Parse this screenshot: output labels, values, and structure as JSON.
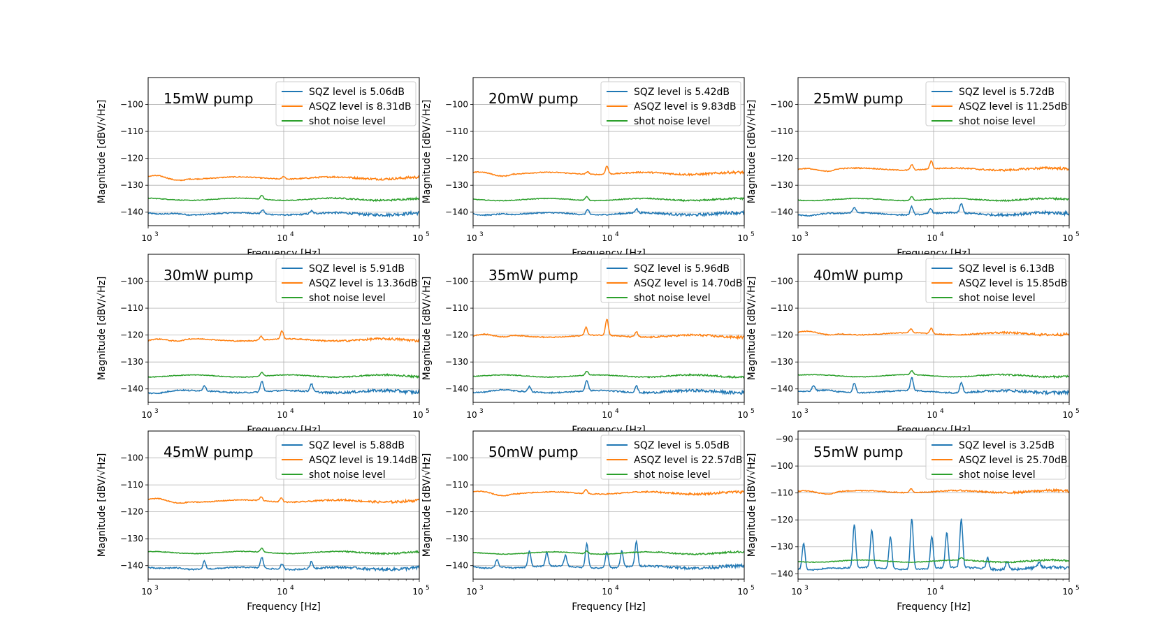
{
  "chart_data": {
    "type": "line",
    "layout": "3x3 grid",
    "x_scale": "log",
    "grid": true,
    "legend_placement": "upper right",
    "xlabel": "Frequency [Hz]",
    "ylabel": "Magnitude [dBV/√Hz]",
    "xlim": [
      1000,
      100000
    ],
    "x_ticks": [
      1000,
      10000,
      100000
    ],
    "x_tick_labels": [
      "10",
      "10",
      "10"
    ],
    "x_tick_exponents": [
      "3",
      "4",
      "5"
    ],
    "colors": {
      "SQZ": "#1f77b4",
      "ASQZ": "#ff7f0e",
      "shot": "#2ca02c",
      "grid": "#b0b0b0"
    },
    "panels": [
      {
        "title": "15mW pump",
        "ylim": [
          -145,
          -90
        ],
        "y_ticks": [
          -140,
          -130,
          -120,
          -110,
          -100
        ],
        "y_tick_labels": [
          "−140",
          "−130",
          "−120",
          "−110",
          "−100"
        ],
        "series": [
          {
            "name": "SQZ level is 5.06dB",
            "key": "SQZ",
            "level": -140.6,
            "peaks": [
              {
                "f": 7000,
                "dy": 1.5
              },
              {
                "f": 16000,
                "dy": 1.0
              }
            ]
          },
          {
            "name": "ASQZ level is 8.31dB",
            "key": "ASQZ",
            "level": -127.3,
            "peaks": [
              {
                "f": 10000,
                "dy": 1.0
              }
            ]
          },
          {
            "name": "shot noise level",
            "key": "shot",
            "level": -135.2,
            "peaks": [
              {
                "f": 6900,
                "dy": 1.5
              }
            ]
          }
        ]
      },
      {
        "title": "20mW pump",
        "ylim": [
          -145,
          -90
        ],
        "y_ticks": [
          -140,
          -130,
          -120,
          -110,
          -100
        ],
        "y_tick_labels": [
          "−140",
          "−130",
          "−120",
          "−110",
          "−100"
        ],
        "series": [
          {
            "name": "SQZ level is 5.42dB",
            "key": "SQZ",
            "level": -140.6,
            "peaks": [
              {
                "f": 7000,
                "dy": 2.0
              },
              {
                "f": 16000,
                "dy": 1.5
              }
            ]
          },
          {
            "name": "ASQZ level is 9.83dB",
            "key": "ASQZ",
            "level": -125.6,
            "peaks": [
              {
                "f": 7000,
                "dy": 1.0
              },
              {
                "f": 9700,
                "dy": 3.0
              }
            ]
          },
          {
            "name": "shot noise level",
            "key": "shot",
            "level": -135.3,
            "peaks": [
              {
                "f": 6900,
                "dy": 1.5
              }
            ]
          }
        ]
      },
      {
        "title": "25mW pump",
        "ylim": [
          -145,
          -90
        ],
        "y_ticks": [
          -140,
          -130,
          -120,
          -110,
          -100
        ],
        "y_tick_labels": [
          "−140",
          "−130",
          "−120",
          "−110",
          "−100"
        ],
        "series": [
          {
            "name": "SQZ level is 5.72dB",
            "key": "SQZ",
            "level": -140.6,
            "peaks": [
              {
                "f": 2600,
                "dy": 2.0
              },
              {
                "f": 6900,
                "dy": 3.0
              },
              {
                "f": 9500,
                "dy": 2.0
              },
              {
                "f": 16000,
                "dy": 3.5
              }
            ]
          },
          {
            "name": "ASQZ level is 11.25dB",
            "key": "ASQZ",
            "level": -124.0,
            "peaks": [
              {
                "f": 6900,
                "dy": 2.0
              },
              {
                "f": 9600,
                "dy": 3.0
              }
            ]
          },
          {
            "name": "shot noise level",
            "key": "shot",
            "level": -135.3,
            "peaks": [
              {
                "f": 6900,
                "dy": 1.5
              }
            ]
          }
        ]
      },
      {
        "title": "30mW pump",
        "ylim": [
          -145,
          -90
        ],
        "y_ticks": [
          -140,
          -130,
          -120,
          -110,
          -100
        ],
        "y_tick_labels": [
          "−140",
          "−130",
          "−120",
          "−110",
          "−100"
        ],
        "series": [
          {
            "name": "SQZ level is 5.91dB",
            "key": "SQZ",
            "level": -141.0,
            "peaks": [
              {
                "f": 2600,
                "dy": 2.0
              },
              {
                "f": 6900,
                "dy": 4.0
              },
              {
                "f": 16000,
                "dy": 3.0
              }
            ]
          },
          {
            "name": "ASQZ level is 13.36dB",
            "key": "ASQZ",
            "level": -121.8,
            "peaks": [
              {
                "f": 6800,
                "dy": 1.5
              },
              {
                "f": 9700,
                "dy": 3.0
              }
            ]
          },
          {
            "name": "shot noise level",
            "key": "shot",
            "level": -135.2,
            "peaks": [
              {
                "f": 6900,
                "dy": 1.5
              }
            ]
          }
        ]
      },
      {
        "title": "35mW pump",
        "ylim": [
          -145,
          -90
        ],
        "y_ticks": [
          -140,
          -130,
          -120,
          -110,
          -100
        ],
        "y_tick_labels": [
          "−140",
          "−130",
          "−120",
          "−110",
          "−100"
        ],
        "series": [
          {
            "name": "SQZ level is 5.96dB",
            "key": "SQZ",
            "level": -141.0,
            "peaks": [
              {
                "f": 2600,
                "dy": 2.0
              },
              {
                "f": 6900,
                "dy": 4.0
              },
              {
                "f": 16000,
                "dy": 2.5
              }
            ]
          },
          {
            "name": "ASQZ level is 14.70dB",
            "key": "ASQZ",
            "level": -120.4,
            "peaks": [
              {
                "f": 6800,
                "dy": 3.0
              },
              {
                "f": 9700,
                "dy": 6.0
              },
              {
                "f": 16000,
                "dy": 2.0
              }
            ]
          },
          {
            "name": "shot noise level",
            "key": "shot",
            "level": -135.2,
            "peaks": [
              {
                "f": 6900,
                "dy": 1.5
              }
            ]
          }
        ]
      },
      {
        "title": "40mW pump",
        "ylim": [
          -145,
          -90
        ],
        "y_ticks": [
          -140,
          -130,
          -120,
          -110,
          -100
        ],
        "y_tick_labels": [
          "−140",
          "−130",
          "−120",
          "−110",
          "−100"
        ],
        "series": [
          {
            "name": "SQZ level is 6.13dB",
            "key": "SQZ",
            "level": -141.0,
            "peaks": [
              {
                "f": 1300,
                "dy": 2.0
              },
              {
                "f": 2600,
                "dy": 3.5
              },
              {
                "f": 6900,
                "dy": 5.0
              },
              {
                "f": 16000,
                "dy": 4.0
              }
            ]
          },
          {
            "name": "ASQZ level is 15.85dB",
            "key": "ASQZ",
            "level": -119.5,
            "peaks": [
              {
                "f": 6800,
                "dy": 1.5
              },
              {
                "f": 9600,
                "dy": 2.0
              }
            ]
          },
          {
            "name": "shot noise level",
            "key": "shot",
            "level": -135.1,
            "peaks": [
              {
                "f": 6900,
                "dy": 1.5
              }
            ]
          }
        ]
      },
      {
        "title": "45mW pump",
        "ylim": [
          -145,
          -90
        ],
        "y_ticks": [
          -140,
          -130,
          -120,
          -110,
          -100
        ],
        "y_tick_labels": [
          "−140",
          "−130",
          "−120",
          "−110",
          "−100"
        ],
        "series": [
          {
            "name": "SQZ level is 5.88dB",
            "key": "SQZ",
            "level": -141.0,
            "peaks": [
              {
                "f": 2600,
                "dy": 3.0
              },
              {
                "f": 6900,
                "dy": 4.0
              },
              {
                "f": 9700,
                "dy": 2.0
              },
              {
                "f": 16000,
                "dy": 2.5
              }
            ]
          },
          {
            "name": "ASQZ level is 19.14dB",
            "key": "ASQZ",
            "level": -116.0,
            "peaks": [
              {
                "f": 6800,
                "dy": 1.5
              },
              {
                "f": 9600,
                "dy": 1.5
              }
            ]
          },
          {
            "name": "shot noise level",
            "key": "shot",
            "level": -135.1,
            "peaks": [
              {
                "f": 6900,
                "dy": 1.5
              }
            ]
          }
        ]
      },
      {
        "title": "50mW pump",
        "ylim": [
          -145,
          -90
        ],
        "y_ticks": [
          -140,
          -130,
          -120,
          -110,
          -100
        ],
        "y_tick_labels": [
          "−140",
          "−130",
          "−120",
          "−110",
          "−100"
        ],
        "series": [
          {
            "name": "SQZ level is 5.05dB",
            "key": "SQZ",
            "level": -140.5,
            "peaks": [
              {
                "f": 1500,
                "dy": 3.0
              },
              {
                "f": 2600,
                "dy": 6.0
              },
              {
                "f": 3500,
                "dy": 5.0
              },
              {
                "f": 4800,
                "dy": 4.0
              },
              {
                "f": 6900,
                "dy": 9.0
              },
              {
                "f": 9700,
                "dy": 6.0
              },
              {
                "f": 12500,
                "dy": 6.0
              },
              {
                "f": 16000,
                "dy": 9.0
              }
            ]
          },
          {
            "name": "ASQZ level is 22.57dB",
            "key": "ASQZ",
            "level": -113.0,
            "peaks": [
              {
                "f": 6800,
                "dy": 1.5
              }
            ]
          },
          {
            "name": "shot noise level",
            "key": "shot",
            "level": -135.3,
            "peaks": [
              {
                "f": 6900,
                "dy": 1.0
              }
            ]
          }
        ]
      },
      {
        "title": "55mW pump",
        "ylim": [
          -142,
          -87
        ],
        "y_ticks": [
          -140,
          -130,
          -120,
          -110,
          -100,
          -90
        ],
        "y_tick_labels": [
          "−140",
          "−130",
          "−120",
          "−110",
          "−100",
          "−90"
        ],
        "series": [
          {
            "name": "SQZ level is 3.25dB",
            "key": "SQZ",
            "level": -138.0,
            "peaks": [
              {
                "f": 1100,
                "dy": 10.0
              },
              {
                "f": 2600,
                "dy": 16.0
              },
              {
                "f": 3500,
                "dy": 14.0
              },
              {
                "f": 4800,
                "dy": 12.0
              },
              {
                "f": 6900,
                "dy": 19.0
              },
              {
                "f": 9700,
                "dy": 12.0
              },
              {
                "f": 12500,
                "dy": 13.0
              },
              {
                "f": 16000,
                "dy": 18.0
              },
              {
                "f": 25000,
                "dy": 4.0
              },
              {
                "f": 35000,
                "dy": 3.0
              },
              {
                "f": 60000,
                "dy": 2.0
              }
            ]
          },
          {
            "name": "ASQZ level is 25.70dB",
            "key": "ASQZ",
            "level": -109.5,
            "peaks": [
              {
                "f": 6800,
                "dy": 1.5
              }
            ]
          },
          {
            "name": "shot noise level",
            "key": "shot",
            "level": -135.3,
            "peaks": [
              {
                "f": 16000,
                "dy": 1.0
              }
            ]
          }
        ]
      }
    ]
  }
}
